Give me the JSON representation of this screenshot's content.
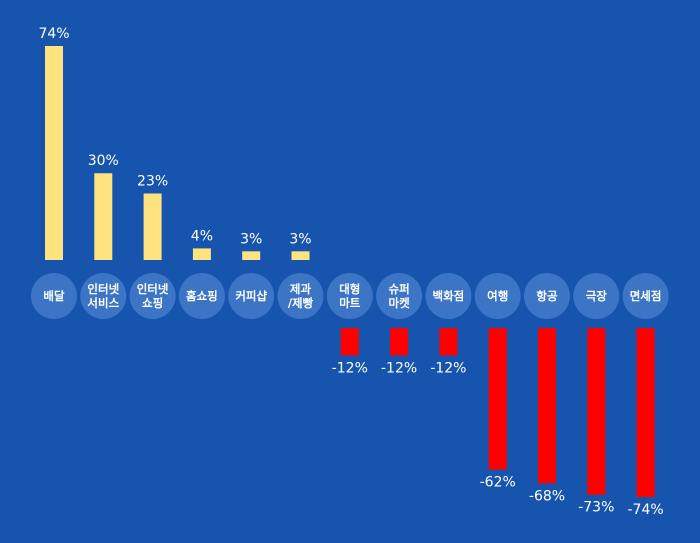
{
  "chart_data": {
    "type": "bar",
    "title": "",
    "xlabel": "",
    "ylabel": "",
    "categories": [
      [
        "배달"
      ],
      [
        "인터넷",
        "서비스"
      ],
      [
        "인터넷",
        "쇼핑"
      ],
      [
        "홈쇼핑"
      ],
      [
        "커피샵"
      ],
      [
        "제과",
        "/제빵"
      ],
      [
        "대형",
        "마트"
      ],
      [
        "슈퍼",
        "마켓"
      ],
      [
        "백화점"
      ],
      [
        "여행"
      ],
      [
        "항공"
      ],
      [
        "극장"
      ],
      [
        "면세점"
      ]
    ],
    "values": [
      74,
      30,
      23,
      4,
      3,
      3,
      -12,
      -12,
      -12,
      -62,
      -68,
      -73,
      -74
    ],
    "value_labels": [
      "74%",
      "30%",
      "23%",
      "4%",
      "3%",
      "3%",
      "-12%",
      "-12%",
      "-12%",
      "-62%",
      "-68%",
      "-73%",
      "-74%"
    ],
    "colors": {
      "background": "#1654ad",
      "positive": "#ffe37f",
      "negative": "#ff0000",
      "category_bubble": "#3d75c6"
    },
    "grid": false,
    "legend": "none"
  }
}
